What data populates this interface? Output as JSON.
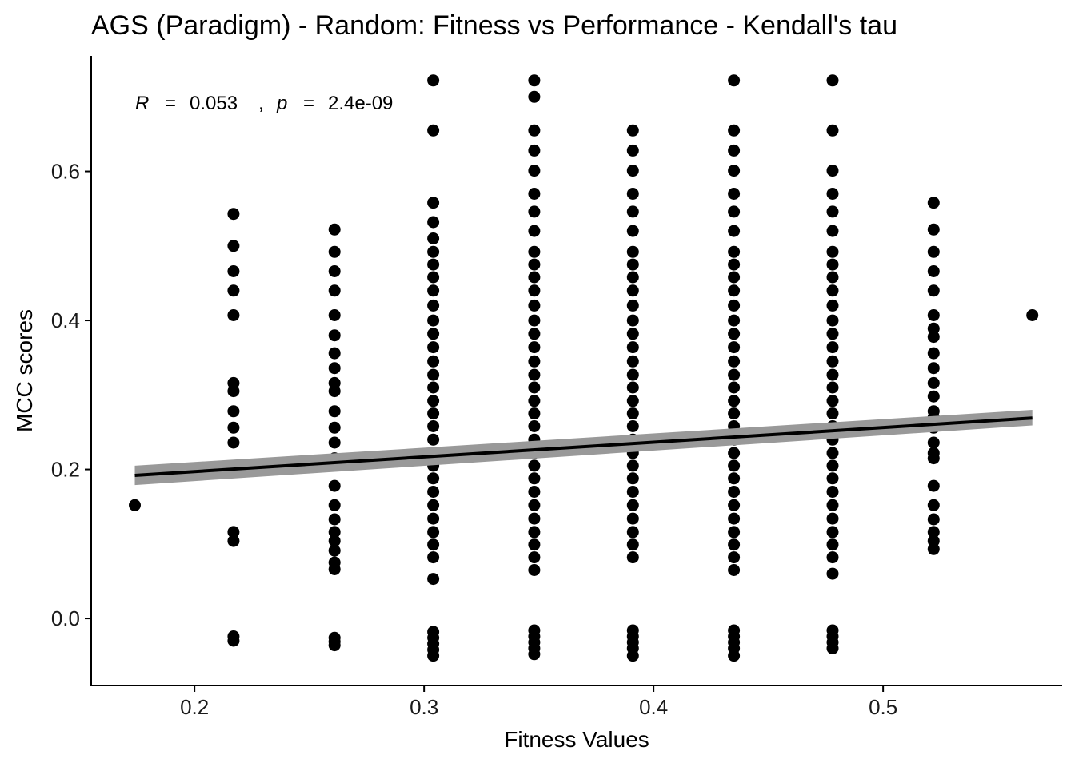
{
  "chart_data": {
    "type": "scatter",
    "title": "AGS (Paradigm) - Random: Fitness vs Performance - Kendall's tau",
    "xlabel": "Fitness Values",
    "ylabel": "MCC scores",
    "xlim": [
      0.155,
      0.578
    ],
    "ylim": [
      -0.09,
      0.755
    ],
    "x_ticks": [
      {
        "value": 0.2,
        "label": "0.2"
      },
      {
        "value": 0.3,
        "label": "0.3"
      },
      {
        "value": 0.4,
        "label": "0.4"
      },
      {
        "value": 0.5,
        "label": "0.5"
      }
    ],
    "y_ticks": [
      {
        "value": 0.0,
        "label": "0.0"
      },
      {
        "value": 0.2,
        "label": "0.2"
      },
      {
        "value": 0.4,
        "label": "0.4"
      },
      {
        "value": 0.6,
        "label": "0.6"
      }
    ],
    "grid": false,
    "annotation": {
      "r_symbol": "R",
      "r_value": "0.053",
      "p_symbol": "p",
      "p_value": "2.4e-09"
    },
    "regression": {
      "x": [
        0.174,
        0.565
      ],
      "y": [
        0.192,
        0.269
      ],
      "ci_lower": [
        0.179,
        0.259
      ],
      "ci_upper": [
        0.205,
        0.28
      ]
    },
    "series": [
      {
        "name": "points",
        "columns": [
          {
            "x": 0.174,
            "y": [
              0.152
            ]
          },
          {
            "x": 0.217,
            "y": [
              0.543,
              0.5,
              0.466,
              0.44,
              0.407,
              0.316,
              0.305,
              0.278,
              0.256,
              0.236,
              0.116,
              0.104,
              -0.024,
              -0.03
            ]
          },
          {
            "x": 0.261,
            "y": [
              0.522,
              0.492,
              0.466,
              0.44,
              0.407,
              0.38,
              0.356,
              0.336,
              0.316,
              0.305,
              0.278,
              0.256,
              0.236,
              0.215,
              0.178,
              0.152,
              0.133,
              0.116,
              0.104,
              0.091,
              0.075,
              0.066,
              -0.026,
              -0.031,
              -0.036
            ]
          },
          {
            "x": 0.304,
            "y": [
              0.722,
              0.655,
              0.558,
              0.532,
              0.51,
              0.492,
              0.475,
              0.458,
              0.44,
              0.42,
              0.4,
              0.382,
              0.364,
              0.345,
              0.327,
              0.31,
              0.292,
              0.275,
              0.258,
              0.24,
              0.222,
              0.205,
              0.188,
              0.17,
              0.152,
              0.134,
              0.116,
              0.099,
              0.082,
              0.053,
              -0.018,
              -0.026,
              -0.034,
              -0.042,
              -0.05
            ]
          },
          {
            "x": 0.348,
            "y": [
              0.722,
              0.7,
              0.655,
              0.628,
              0.601,
              0.57,
              0.546,
              0.52,
              0.492,
              0.475,
              0.458,
              0.44,
              0.42,
              0.4,
              0.382,
              0.364,
              0.345,
              0.327,
              0.31,
              0.292,
              0.275,
              0.258,
              0.24,
              0.222,
              0.205,
              0.188,
              0.17,
              0.152,
              0.134,
              0.116,
              0.099,
              0.082,
              0.065,
              -0.016,
              -0.024,
              -0.032,
              -0.04,
              -0.048
            ]
          },
          {
            "x": 0.391,
            "y": [
              0.655,
              0.628,
              0.601,
              0.57,
              0.546,
              0.52,
              0.492,
              0.475,
              0.458,
              0.44,
              0.42,
              0.4,
              0.382,
              0.364,
              0.345,
              0.327,
              0.31,
              0.292,
              0.275,
              0.258,
              0.24,
              0.222,
              0.205,
              0.188,
              0.17,
              0.152,
              0.134,
              0.116,
              0.099,
              0.082,
              -0.016,
              -0.024,
              -0.032,
              -0.04,
              -0.05
            ]
          },
          {
            "x": 0.435,
            "y": [
              0.722,
              0.655,
              0.628,
              0.601,
              0.57,
              0.546,
              0.52,
              0.492,
              0.475,
              0.458,
              0.44,
              0.42,
              0.4,
              0.382,
              0.364,
              0.345,
              0.327,
              0.31,
              0.292,
              0.275,
              0.258,
              0.24,
              0.222,
              0.205,
              0.188,
              0.17,
              0.152,
              0.134,
              0.116,
              0.099,
              0.082,
              0.065,
              -0.016,
              -0.024,
              -0.032,
              -0.04,
              -0.05
            ]
          },
          {
            "x": 0.478,
            "y": [
              0.722,
              0.655,
              0.601,
              0.57,
              0.546,
              0.52,
              0.492,
              0.475,
              0.458,
              0.44,
              0.42,
              0.4,
              0.382,
              0.364,
              0.345,
              0.327,
              0.31,
              0.292,
              0.275,
              0.258,
              0.24,
              0.222,
              0.205,
              0.188,
              0.17,
              0.152,
              0.134,
              0.116,
              0.099,
              0.082,
              0.06,
              -0.016,
              -0.024,
              -0.032,
              -0.04
            ]
          },
          {
            "x": 0.522,
            "y": [
              0.558,
              0.522,
              0.492,
              0.466,
              0.44,
              0.407,
              0.389,
              0.378,
              0.356,
              0.336,
              0.316,
              0.298,
              0.278,
              0.27,
              0.256,
              0.236,
              0.222,
              0.215,
              0.178,
              0.152,
              0.133,
              0.116,
              0.104,
              0.093
            ]
          },
          {
            "x": 0.565,
            "y": [
              0.407
            ]
          }
        ]
      }
    ]
  }
}
